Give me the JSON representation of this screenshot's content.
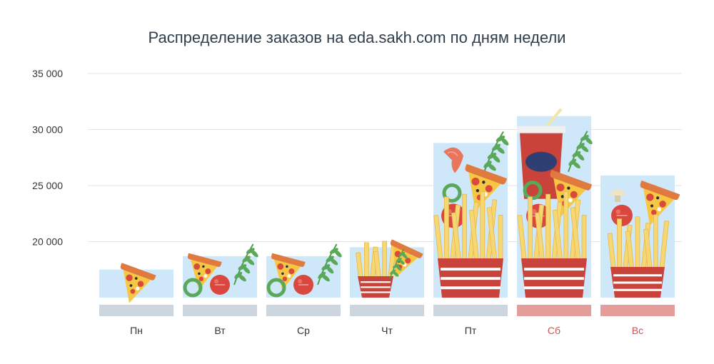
{
  "chart_data": {
    "type": "bar",
    "title": "Распределение заказов на eda.sakh.com по дням недели",
    "categories": [
      "Пн",
      "Вт",
      "Ср",
      "Чт",
      "Пт",
      "Сб",
      "Вс"
    ],
    "values": [
      17500,
      18700,
      18700,
      19500,
      28800,
      31200,
      25900
    ],
    "weekend": [
      false,
      false,
      false,
      false,
      false,
      true,
      true
    ],
    "yticks": [
      20000,
      25000,
      30000,
      35000
    ],
    "ytick_labels": [
      "20 000",
      "25 000",
      "30 000",
      "35 000"
    ],
    "ylim": [
      15000,
      35000
    ],
    "grid": true,
    "colors": {
      "bar_fill": "#cfe8f9",
      "weekday_base": "#cdd6de",
      "weekend_base": "#e59d9c",
      "weekday_label": "#333333",
      "weekend_label": "#d0524f",
      "grid": "#e3e3e3"
    },
    "icons": [
      "pizza-slice-icon",
      "tomato-icon",
      "herb-icon",
      "french-fries-icon",
      "shrimp-icon",
      "bell-pepper-icon",
      "soda-cup-icon",
      "mushroom-icon"
    ]
  }
}
